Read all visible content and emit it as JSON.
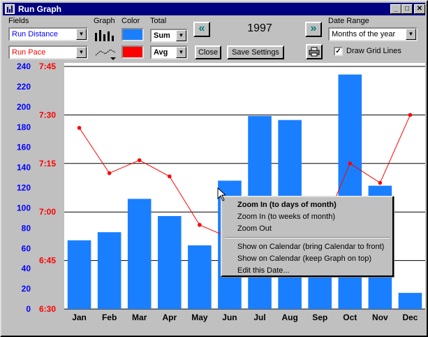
{
  "window": {
    "title": "Run Graph",
    "minimize_glyph": "_",
    "maximize_glyph": "□",
    "close_glyph": "✕"
  },
  "toolbar": {
    "fields_label": "Fields",
    "field1": "Run Distance",
    "field2": "Run Pace",
    "graph_label": "Graph",
    "color_label": "Color",
    "color1": "#1a7fff",
    "color2": "#ff0000",
    "total_label": "Total",
    "total1": "Sum",
    "total2": "Avg",
    "close_label": "Close",
    "save_settings_label": "Save Settings",
    "year": "1997",
    "prev_glyph": "«",
    "next_glyph": "»",
    "date_range_label": "Date Range",
    "date_range_value": "Months of the year",
    "draw_grid_lines_label": "Draw Grid Lines",
    "draw_grid_lines_checked": true,
    "print_icon": "printer-icon"
  },
  "chart_data": {
    "type": "bar",
    "categories": [
      "Jan",
      "Feb",
      "Mar",
      "Apr",
      "May",
      "Jun",
      "Jul",
      "Aug",
      "Sep",
      "Oct",
      "Nov",
      "Dec"
    ],
    "series": [
      {
        "name": "Run Distance",
        "type": "bar",
        "color": "#1a7fff",
        "values": [
          68,
          76,
          109,
          92,
          63,
          127,
          191,
          187,
          80,
          232,
          122,
          16
        ]
      },
      {
        "name": "Run Pace",
        "type": "line",
        "color": "#ff0000",
        "values": [
          "7:26",
          "7:12",
          "7:16",
          "7:11",
          "6:56",
          "6:52",
          "7:00",
          "7:01",
          "6:53",
          "7:15",
          "7:09",
          "7:30"
        ]
      }
    ],
    "y_left": {
      "ticks": [
        240,
        220,
        200,
        180,
        160,
        140,
        120,
        100,
        80,
        60,
        40,
        20,
        0
      ],
      "range": [
        0,
        240
      ],
      "color": "#0000ff"
    },
    "y_right": {
      "ticks": [
        "7:45",
        "7:30",
        "7:15",
        "7:00",
        "6:45",
        "6:30"
      ],
      "range_minutes": [
        390,
        465
      ],
      "color": "#ff0000"
    },
    "grid": true
  },
  "context_menu": {
    "items": [
      {
        "label": "Zoom In (to days of month)",
        "bold": true
      },
      {
        "label": "Zoom In (to weeks of month)"
      },
      {
        "label": "Zoom Out"
      },
      {
        "label": "Show on Calendar (bring Calendar to front)"
      },
      {
        "label": "Show on Calendar (keep Graph on top)"
      },
      {
        "label": "Edit this Date..."
      }
    ]
  }
}
